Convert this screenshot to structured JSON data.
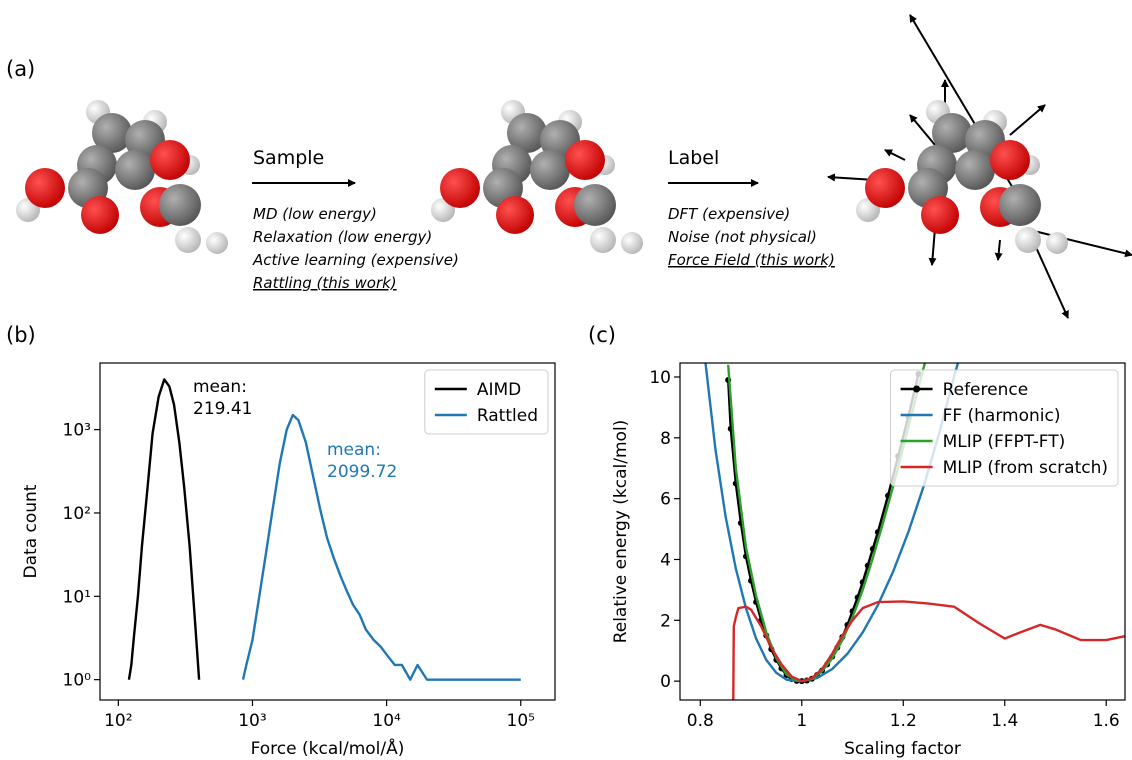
{
  "panel_a": {
    "label": "(a)",
    "sample": {
      "title": "Sample",
      "items": [
        "MD (low energy)",
        "Relaxation (low energy)",
        "Active learning (expensive)",
        "Rattling (this work)"
      ]
    },
    "labeling": {
      "title": "Label",
      "items": [
        "DFT (expensive)",
        "Noise (not physical)",
        "Force Field (this work)"
      ]
    }
  },
  "chart_data": [
    {
      "type": "line",
      "panel_label": "(b)",
      "xlabel": "Force (kcal/mol/Å)",
      "ylabel": "Data count",
      "xscale": "log",
      "yscale": "log",
      "xlim": [
        73,
        180000
      ],
      "ylim": [
        0.57,
        6300
      ],
      "xticks": [
        {
          "value": 100,
          "label": "10²"
        },
        {
          "value": 1000,
          "label": "10³"
        },
        {
          "value": 10000,
          "label": "10⁴"
        },
        {
          "value": 100000,
          "label": "10⁵"
        }
      ],
      "yticks": [
        {
          "value": 1,
          "label": "10⁰"
        },
        {
          "value": 10,
          "label": "10¹"
        },
        {
          "value": 100,
          "label": "10²"
        },
        {
          "value": 1000,
          "label": "10³"
        }
      ],
      "legend": "upper right",
      "annotations": [
        {
          "text": [
            "mean:",
            "219.41"
          ],
          "color": "#000000"
        },
        {
          "text": [
            "mean:",
            "2099.72"
          ],
          "color": "#1f77b4"
        }
      ],
      "series": [
        {
          "name": "AIMD",
          "color": "#000000",
          "x": [
            120,
            125,
            130,
            140,
            150,
            165,
            180,
            200,
            220,
            240,
            260,
            285,
            310,
            340,
            370,
            400
          ],
          "values": [
            1,
            1.5,
            3,
            10,
            40,
            200,
            900,
            2500,
            4000,
            3300,
            2000,
            700,
            200,
            40,
            6,
            1
          ]
        },
        {
          "name": "Rattled",
          "color": "#1f77b4",
          "x": [
            850,
            900,
            1000,
            1100,
            1250,
            1400,
            1600,
            1800,
            2000,
            2200,
            2500,
            2800,
            3200,
            3600,
            4000,
            4500,
            5000,
            5600,
            6300,
            7000,
            8000,
            9000,
            10000,
            11500,
            13000,
            15000,
            17000,
            20000,
            25000,
            30000,
            40000,
            50000,
            70000,
            100000
          ],
          "values": [
            1,
            1.5,
            3,
            8,
            30,
            100,
            400,
            1000,
            1500,
            1300,
            700,
            300,
            110,
            50,
            30,
            18,
            12,
            8,
            6,
            4,
            3,
            2.5,
            2,
            1.5,
            1.5,
            1,
            1.5,
            1,
            1,
            1,
            1,
            1,
            1,
            1
          ]
        }
      ]
    },
    {
      "type": "line",
      "panel_label": "(c)",
      "xlabel": "Scaling factor",
      "ylabel": "Relative energy (kcal/mol)",
      "xscale": "linear",
      "yscale": "linear",
      "xlim": [
        0.76,
        1.637
      ],
      "ylim": [
        -0.62,
        10.46
      ],
      "xticks": [
        {
          "value": 0.8,
          "label": "0.8"
        },
        1,
        1.2,
        1.4,
        1.6
      ],
      "yticks": [
        0,
        2,
        4,
        6,
        8,
        10
      ],
      "legend": "upper right",
      "series": [
        {
          "name": "Reference",
          "color": "#000000",
          "marker": "o",
          "x": [
            0.855,
            0.86,
            0.87,
            0.88,
            0.89,
            0.9,
            0.91,
            0.92,
            0.93,
            0.94,
            0.95,
            0.96,
            0.97,
            0.98,
            0.99,
            1.0,
            1.01,
            1.02,
            1.03,
            1.04,
            1.05,
            1.06,
            1.07,
            1.08,
            1.09,
            1.1,
            1.11,
            1.12,
            1.13,
            1.14,
            1.15,
            1.17,
            1.19,
            1.21,
            1.23
          ],
          "values": [
            9.9,
            8.3,
            6.5,
            5.2,
            4.1,
            3.3,
            2.6,
            2.0,
            1.5,
            1.05,
            0.7,
            0.42,
            0.2,
            0.07,
            0.01,
            0,
            0.02,
            0.08,
            0.2,
            0.35,
            0.55,
            0.8,
            1.1,
            1.45,
            1.85,
            2.3,
            2.75,
            3.25,
            3.8,
            4.35,
            4.9,
            6.1,
            7.4,
            8.7,
            10.1
          ]
        },
        {
          "name": "FF (harmonic)",
          "color": "#1f77b4",
          "x": [
            0.81,
            0.83,
            0.85,
            0.87,
            0.89,
            0.91,
            0.93,
            0.95,
            0.97,
            1.0,
            1.03,
            1.06,
            1.09,
            1.12,
            1.15,
            1.18,
            1.21,
            1.24,
            1.27,
            1.3,
            1.31
          ],
          "values": [
            10.5,
            7.6,
            5.4,
            3.7,
            2.4,
            1.4,
            0.7,
            0.27,
            0.05,
            0,
            0.1,
            0.4,
            0.9,
            1.6,
            2.5,
            3.6,
            4.9,
            6.4,
            8.1,
            10.0,
            10.6
          ]
        },
        {
          "name": "MLIP (FFPT-FT)",
          "color": "#2ca02c",
          "x": [
            0.855,
            0.87,
            0.89,
            0.91,
            0.93,
            0.95,
            0.97,
            0.99,
            1.0,
            1.02,
            1.04,
            1.06,
            1.08,
            1.1,
            1.12,
            1.14,
            1.16,
            1.18,
            1.2,
            1.22,
            1.24,
            1.25
          ],
          "values": [
            10.4,
            7.0,
            4.4,
            2.8,
            1.6,
            0.75,
            0.22,
            0.02,
            0,
            0.07,
            0.33,
            0.75,
            1.35,
            2.1,
            3.0,
            4.05,
            5.2,
            6.4,
            7.7,
            9.0,
            10.3,
            10.9
          ]
        },
        {
          "name": "MLIP (from scratch)",
          "color": "#d62728",
          "x": [
            0.865,
            0.866,
            0.87,
            0.875,
            0.89,
            0.9,
            0.92,
            0.94,
            0.96,
            0.98,
            1.0,
            1.02,
            1.04,
            1.06,
            1.08,
            1.1,
            1.12,
            1.15,
            1.2,
            1.25,
            1.3,
            1.35,
            1.4,
            1.43,
            1.47,
            1.5,
            1.55,
            1.6,
            1.637
          ],
          "values": [
            -0.62,
            1.8,
            2.1,
            2.4,
            2.45,
            2.35,
            1.8,
            1.1,
            0.55,
            0.15,
            0,
            0.1,
            0.4,
            0.9,
            1.5,
            2.0,
            2.4,
            2.6,
            2.62,
            2.55,
            2.45,
            1.9,
            1.4,
            1.6,
            1.85,
            1.7,
            1.35,
            1.35,
            1.48
          ]
        }
      ]
    }
  ]
}
